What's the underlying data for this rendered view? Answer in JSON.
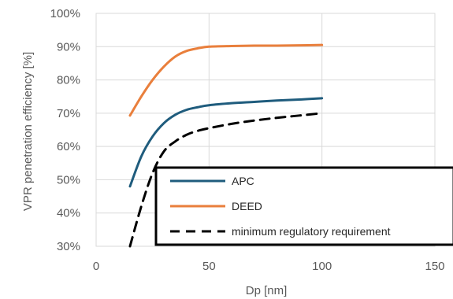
{
  "chart_data": {
    "type": "line",
    "xlabel": "Dp [nm]",
    "ylabel": "VPR penetration efficiency [%]",
    "xlim": [
      0,
      150
    ],
    "ylim": [
      30,
      100
    ],
    "xticks": [
      0,
      50,
      100,
      150
    ],
    "yticks": [
      30,
      40,
      50,
      60,
      70,
      80,
      90,
      100
    ],
    "xtick_labels": [
      "0",
      "50",
      "100",
      "150"
    ],
    "ytick_labels": [
      "30%",
      "40%",
      "50%",
      "60%",
      "70%",
      "80%",
      "90%",
      "100%"
    ],
    "grid": true,
    "legend_position": "bottom-right",
    "series": [
      {
        "name": "APC",
        "color": "#1F5C7D",
        "dash": "solid",
        "x": [
          15,
          20,
          25,
          30,
          35,
          40,
          45,
          50,
          60,
          70,
          80,
          90,
          100
        ],
        "y": [
          48,
          57,
          63,
          67,
          69.5,
          71,
          71.8,
          72.4,
          73,
          73.4,
          73.8,
          74.1,
          74.5
        ]
      },
      {
        "name": "DEED",
        "color": "#E97F3C",
        "dash": "solid",
        "x": [
          15,
          20,
          25,
          30,
          35,
          40,
          45,
          50,
          60,
          70,
          80,
          90,
          100
        ],
        "y": [
          69.3,
          75,
          80,
          84,
          87,
          88.7,
          89.5,
          90,
          90.2,
          90.3,
          90.3,
          90.4,
          90.5
        ]
      },
      {
        "name": "minimum regulatory requirement",
        "color": "#000000",
        "dash": "dashed",
        "x": [
          15,
          20,
          25,
          30,
          35,
          40,
          45,
          50,
          60,
          70,
          80,
          90,
          100
        ],
        "y": [
          30,
          42,
          52,
          58.5,
          61.5,
          63.5,
          64.7,
          65.5,
          66.8,
          67.8,
          68.6,
          69.3,
          70
        ]
      }
    ]
  }
}
